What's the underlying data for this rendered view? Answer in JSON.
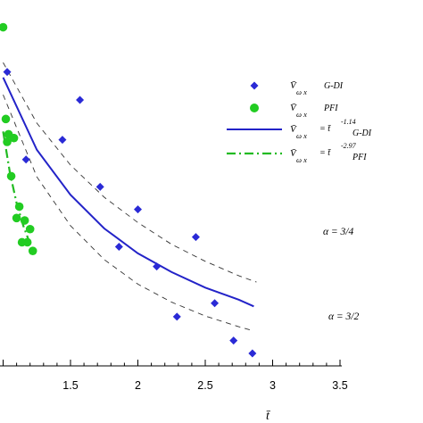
{
  "chart_data": {
    "type": "scatter",
    "title": "",
    "xlabel": "t̄",
    "ylabel": "",
    "xlim": [
      0.5,
      3.5
    ],
    "ylim": [
      0,
      1
    ],
    "x_ticks": [
      "1.5",
      "2",
      "2.5",
      "3",
      "3.5"
    ],
    "x_tick_values": [
      1.5,
      2.0,
      2.5,
      3.0,
      3.5
    ],
    "grid": false,
    "legend_position": "right",
    "series": [
      {
        "name": "G-DI",
        "kind": "points",
        "marker": "diamond",
        "color": "#2a2ad6",
        "x": [
          1.03,
          1.17,
          1.44,
          1.57,
          1.72,
          1.86,
          2.0,
          2.14,
          2.29,
          2.43,
          2.57,
          2.71,
          2.85
        ],
        "y": [
          0.849,
          0.596,
          0.653,
          0.768,
          0.517,
          0.344,
          0.452,
          0.287,
          0.142,
          0.372,
          0.181,
          0.073,
          0.036
        ]
      },
      {
        "name": "PFI",
        "kind": "points",
        "marker": "circle",
        "color": "#22cc22",
        "x": [
          1.0,
          1.02,
          1.03,
          1.04,
          1.06,
          1.08,
          1.1,
          1.12,
          1.14,
          1.16,
          1.18,
          1.2,
          1.22
        ],
        "y": [
          0.978,
          0.713,
          0.647,
          0.669,
          0.548,
          0.658,
          0.427,
          0.46,
          0.357,
          0.42,
          0.357,
          0.395,
          0.332
        ]
      },
      {
        "name": "G-DI fit",
        "kind": "curve",
        "color": "#2323c8",
        "dash": "solid",
        "exponent": -1.14,
        "x": [
          1.0,
          1.25,
          1.5,
          1.75,
          2.0,
          2.25,
          2.5,
          2.75,
          2.86
        ],
        "y": [
          0.833,
          0.624,
          0.494,
          0.397,
          0.325,
          0.271,
          0.226,
          0.191,
          0.172
        ]
      },
      {
        "name": "PFI fit",
        "kind": "curve",
        "color": "#22bb22",
        "dash": "dashdot",
        "exponent": -2.97,
        "x": [
          1.0,
          1.05,
          1.1,
          1.15,
          1.2
        ],
        "y": [
          0.677,
          0.558,
          0.47,
          0.405,
          0.352
        ]
      },
      {
        "name": "upper bound",
        "kind": "curve",
        "color": "#333333",
        "dash": "dashed",
        "x": [
          1.0,
          1.25,
          1.5,
          1.75,
          2.0,
          2.25,
          2.5,
          2.75,
          2.88
        ],
        "y": [
          0.876,
          0.701,
          0.58,
          0.487,
          0.414,
          0.351,
          0.302,
          0.26,
          0.242
        ]
      },
      {
        "name": "lower bound",
        "kind": "curve",
        "color": "#333333",
        "dash": "dashed",
        "x": [
          1.0,
          1.25,
          1.5,
          1.75,
          2.0,
          2.25,
          2.5,
          2.75,
          2.86
        ],
        "y": [
          0.783,
          0.546,
          0.405,
          0.307,
          0.236,
          0.184,
          0.144,
          0.113,
          0.101
        ]
      }
    ],
    "annotations": [
      "α = 3/4",
      "α = 3/2"
    ],
    "legend": [
      {
        "symbol": "V̄",
        "sub": "ω x",
        "label": "G-DI"
      },
      {
        "symbol": "V̄",
        "sub": "ω x",
        "label": "PFI"
      },
      {
        "symbol": "V̄",
        "sub": "ω x",
        "eq": "= t̄",
        "sup": "-1.14",
        "label": "G-DI"
      },
      {
        "symbol": "V̄",
        "sub": "ω x",
        "eq": "= t̄",
        "sup": "-2.97",
        "label": "PFI"
      }
    ]
  }
}
